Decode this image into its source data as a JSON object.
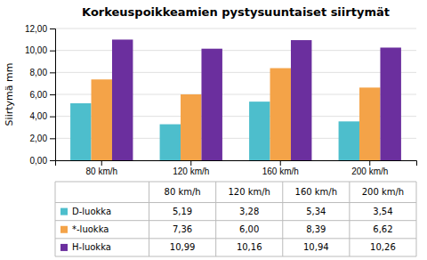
{
  "chart_data": {
    "type": "bar",
    "title": "Korkeuspoikkeamien pystysuuntaiset siirtymät",
    "y_label": "Siirtymä mm",
    "categories": [
      "80 km/h",
      "120 km/h",
      "160 km/h",
      "200 km/h"
    ],
    "series": [
      {
        "name": "D-luokka",
        "color": "#4DBECC",
        "values": [
          5.19,
          3.28,
          5.34,
          3.54
        ],
        "value_labels": [
          "5,19",
          "3,28",
          "5,34",
          "3,54"
        ]
      },
      {
        "name": "*-luokka",
        "color": "#F4A348",
        "values": [
          7.36,
          6.0,
          8.39,
          6.62
        ],
        "value_labels": [
          "7,36",
          "6,00",
          "8,39",
          "6,62"
        ]
      },
      {
        "name": "H-luokka",
        "color": "#6B2F9E",
        "values": [
          10.99,
          10.16,
          10.94,
          10.26
        ],
        "value_labels": [
          "10,99",
          "10,16",
          "10,94",
          "10,26"
        ]
      }
    ],
    "ylim": [
      0,
      12
    ],
    "yticks": [
      {
        "value": 0,
        "label": "0,00"
      },
      {
        "value": 2,
        "label": "2,00"
      },
      {
        "value": 4,
        "label": "4,00"
      },
      {
        "value": 6,
        "label": "6,00"
      },
      {
        "value": 8,
        "label": "8,00"
      },
      {
        "value": 10,
        "label": "10,00"
      },
      {
        "value": 12,
        "label": "12,00"
      }
    ],
    "grid": true
  }
}
